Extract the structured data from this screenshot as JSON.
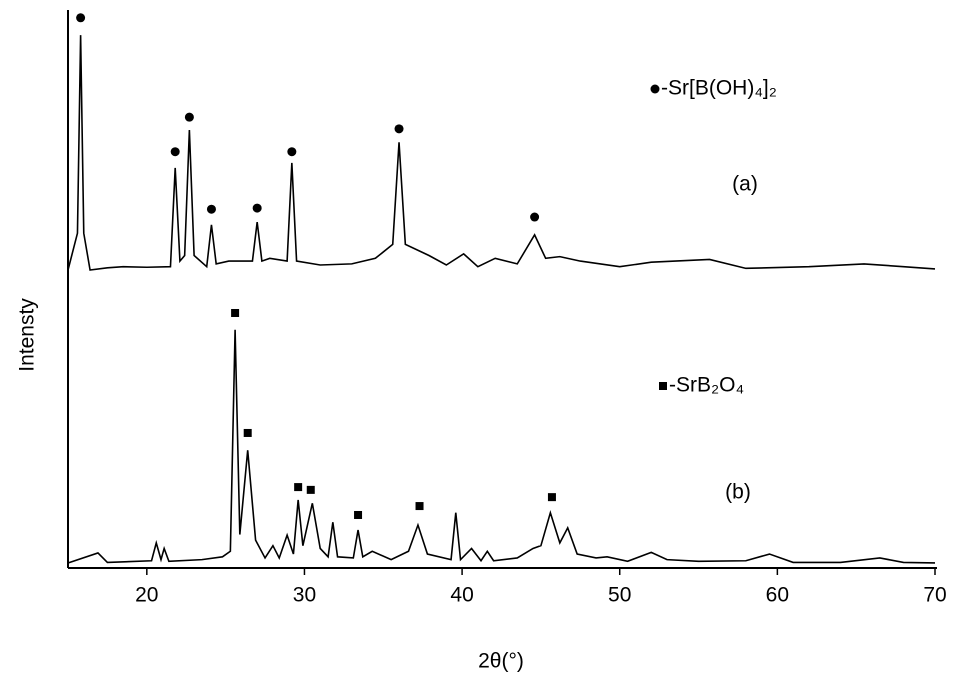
{
  "chart_data": {
    "type": "line",
    "xlabel": "2θ(°)",
    "ylabel": "Intensty",
    "xlim": [
      15,
      70
    ],
    "xticks": [
      20,
      30,
      40,
      50,
      60,
      70
    ],
    "ylim": [
      0,
      100
    ],
    "series": [
      {
        "name": "-Sr[B(OH)₄]₂",
        "label": "(a)",
        "color": "#000000",
        "marker": "circle",
        "x": [
          15,
          15.6,
          15.8,
          16.0,
          16.4,
          17.5,
          18.5,
          20,
          21.5,
          21.8,
          22.1,
          22.4,
          22.7,
          23.0,
          23.8,
          24.1,
          24.4,
          25.2,
          26.7,
          27.0,
          27.3,
          27.8,
          28.9,
          29.2,
          29.5,
          31,
          33,
          34.5,
          35.6,
          36.0,
          36.4,
          37.9,
          39,
          40.1,
          41,
          42.1,
          43.5,
          44.6,
          45.3,
          46.2,
          47.5,
          50,
          52,
          55.7,
          58,
          62,
          65.5,
          68,
          70
        ],
        "values": [
          53.4,
          60,
          95.5,
          60,
          53.4,
          53.8,
          54,
          53.9,
          54,
          71.7,
          55,
          56,
          78.5,
          56,
          54,
          61.5,
          54.5,
          55,
          55,
          62,
          55,
          55.5,
          55,
          72.6,
          55,
          54.3,
          54.5,
          55.5,
          58,
          76.3,
          58,
          56,
          54.3,
          56.3,
          54,
          55.5,
          54.5,
          59.7,
          55.5,
          55.8,
          55,
          54,
          54.8,
          55.3,
          53.7,
          54,
          54.5,
          54,
          53.6
        ],
        "markers": {
          "x": [
            15.8,
            21.8,
            22.7,
            24.1,
            27.0,
            29.2,
            36.0,
            44.6
          ],
          "y": [
            98.6,
            74.6,
            80.8,
            64.3,
            64.5,
            74.6,
            78.7,
            62.9
          ]
        }
      },
      {
        "name": "-SrB₂O₄",
        "label": "(b)",
        "color": "#000000",
        "marker": "square",
        "x": [
          15,
          16.9,
          17.5,
          20.3,
          20.6,
          20.9,
          21.1,
          21.4,
          23.5,
          24.8,
          25.3,
          25.6,
          25.9,
          26.4,
          26.9,
          27.5,
          28.0,
          28.4,
          28.9,
          29.3,
          29.6,
          29.9,
          30.5,
          31.0,
          31.5,
          31.8,
          32.1,
          33.1,
          33.4,
          33.7,
          34.3,
          35.5,
          36.6,
          37.2,
          37.8,
          39.3,
          39.6,
          39.9,
          40.6,
          41.2,
          41.6,
          42,
          43.5,
          44.5,
          45.0,
          45.6,
          46.2,
          46.7,
          47.3,
          48.5,
          49.2,
          50.5,
          52,
          53,
          55,
          58,
          59.5,
          61,
          64,
          66.5,
          68,
          70
        ],
        "values": [
          0.9,
          2.7,
          1,
          1.3,
          4.5,
          1.5,
          3.5,
          1.2,
          1.5,
          2,
          3,
          42.7,
          6,
          21.1,
          5,
          1.8,
          4,
          1.8,
          5.9,
          2.5,
          12.2,
          4,
          11.6,
          3.5,
          2,
          8.2,
          2,
          1.8,
          6.8,
          2,
          3,
          1.5,
          3,
          7.7,
          2.5,
          1.5,
          9.9,
          1.5,
          3.5,
          1.3,
          3,
          1.3,
          1.8,
          3.5,
          4,
          9.9,
          4.5,
          7.2,
          2.5,
          1.8,
          2,
          1.2,
          2.8,
          1.5,
          1.2,
          1.3,
          2.5,
          1,
          1,
          1.8,
          1,
          0.9
        ],
        "markers": {
          "x": [
            25.6,
            26.4,
            29.6,
            30.4,
            33.4,
            37.3,
            45.7
          ],
          "y": [
            45.7,
            24.2,
            14.5,
            14,
            9.5,
            11.1,
            12.7
          ]
        }
      }
    ]
  }
}
